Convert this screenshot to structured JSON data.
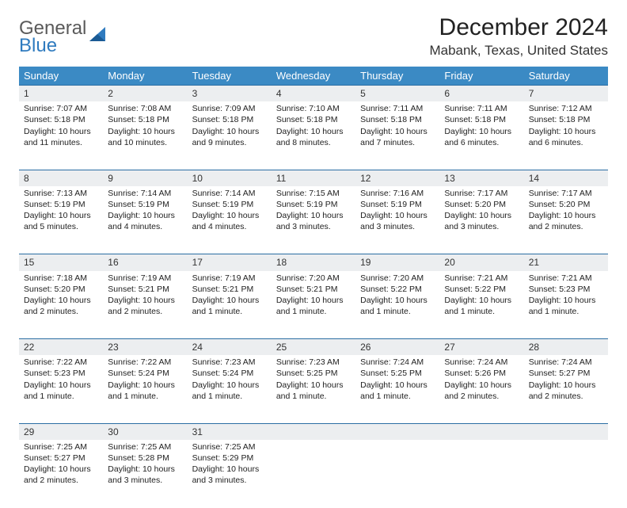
{
  "brand": {
    "general": "General",
    "blue": "Blue"
  },
  "title": "December 2024",
  "location": "Mabank, Texas, United States",
  "colors": {
    "header_bg": "#3b8ac4",
    "header_text": "#ffffff",
    "daynum_bg": "#eceef0",
    "daynum_border": "#2b6ea3",
    "logo_gray": "#5a5a5a",
    "logo_blue": "#2f7bbf"
  },
  "day_labels": [
    "Sunday",
    "Monday",
    "Tuesday",
    "Wednesday",
    "Thursday",
    "Friday",
    "Saturday"
  ],
  "weeks": [
    [
      {
        "n": "1",
        "sr": "7:07 AM",
        "ss": "5:18 PM",
        "dl": "10 hours and 11 minutes."
      },
      {
        "n": "2",
        "sr": "7:08 AM",
        "ss": "5:18 PM",
        "dl": "10 hours and 10 minutes."
      },
      {
        "n": "3",
        "sr": "7:09 AM",
        "ss": "5:18 PM",
        "dl": "10 hours and 9 minutes."
      },
      {
        "n": "4",
        "sr": "7:10 AM",
        "ss": "5:18 PM",
        "dl": "10 hours and 8 minutes."
      },
      {
        "n": "5",
        "sr": "7:11 AM",
        "ss": "5:18 PM",
        "dl": "10 hours and 7 minutes."
      },
      {
        "n": "6",
        "sr": "7:11 AM",
        "ss": "5:18 PM",
        "dl": "10 hours and 6 minutes."
      },
      {
        "n": "7",
        "sr": "7:12 AM",
        "ss": "5:18 PM",
        "dl": "10 hours and 6 minutes."
      }
    ],
    [
      {
        "n": "8",
        "sr": "7:13 AM",
        "ss": "5:19 PM",
        "dl": "10 hours and 5 minutes."
      },
      {
        "n": "9",
        "sr": "7:14 AM",
        "ss": "5:19 PM",
        "dl": "10 hours and 4 minutes."
      },
      {
        "n": "10",
        "sr": "7:14 AM",
        "ss": "5:19 PM",
        "dl": "10 hours and 4 minutes."
      },
      {
        "n": "11",
        "sr": "7:15 AM",
        "ss": "5:19 PM",
        "dl": "10 hours and 3 minutes."
      },
      {
        "n": "12",
        "sr": "7:16 AM",
        "ss": "5:19 PM",
        "dl": "10 hours and 3 minutes."
      },
      {
        "n": "13",
        "sr": "7:17 AM",
        "ss": "5:20 PM",
        "dl": "10 hours and 3 minutes."
      },
      {
        "n": "14",
        "sr": "7:17 AM",
        "ss": "5:20 PM",
        "dl": "10 hours and 2 minutes."
      }
    ],
    [
      {
        "n": "15",
        "sr": "7:18 AM",
        "ss": "5:20 PM",
        "dl": "10 hours and 2 minutes."
      },
      {
        "n": "16",
        "sr": "7:19 AM",
        "ss": "5:21 PM",
        "dl": "10 hours and 2 minutes."
      },
      {
        "n": "17",
        "sr": "7:19 AM",
        "ss": "5:21 PM",
        "dl": "10 hours and 1 minute."
      },
      {
        "n": "18",
        "sr": "7:20 AM",
        "ss": "5:21 PM",
        "dl": "10 hours and 1 minute."
      },
      {
        "n": "19",
        "sr": "7:20 AM",
        "ss": "5:22 PM",
        "dl": "10 hours and 1 minute."
      },
      {
        "n": "20",
        "sr": "7:21 AM",
        "ss": "5:22 PM",
        "dl": "10 hours and 1 minute."
      },
      {
        "n": "21",
        "sr": "7:21 AM",
        "ss": "5:23 PM",
        "dl": "10 hours and 1 minute."
      }
    ],
    [
      {
        "n": "22",
        "sr": "7:22 AM",
        "ss": "5:23 PM",
        "dl": "10 hours and 1 minute."
      },
      {
        "n": "23",
        "sr": "7:22 AM",
        "ss": "5:24 PM",
        "dl": "10 hours and 1 minute."
      },
      {
        "n": "24",
        "sr": "7:23 AM",
        "ss": "5:24 PM",
        "dl": "10 hours and 1 minute."
      },
      {
        "n": "25",
        "sr": "7:23 AM",
        "ss": "5:25 PM",
        "dl": "10 hours and 1 minute."
      },
      {
        "n": "26",
        "sr": "7:24 AM",
        "ss": "5:25 PM",
        "dl": "10 hours and 1 minute."
      },
      {
        "n": "27",
        "sr": "7:24 AM",
        "ss": "5:26 PM",
        "dl": "10 hours and 2 minutes."
      },
      {
        "n": "28",
        "sr": "7:24 AM",
        "ss": "5:27 PM",
        "dl": "10 hours and 2 minutes."
      }
    ],
    [
      {
        "n": "29",
        "sr": "7:25 AM",
        "ss": "5:27 PM",
        "dl": "10 hours and 2 minutes."
      },
      {
        "n": "30",
        "sr": "7:25 AM",
        "ss": "5:28 PM",
        "dl": "10 hours and 3 minutes."
      },
      {
        "n": "31",
        "sr": "7:25 AM",
        "ss": "5:29 PM",
        "dl": "10 hours and 3 minutes."
      },
      null,
      null,
      null,
      null
    ]
  ],
  "labels": {
    "sunrise": "Sunrise: ",
    "sunset": "Sunset: ",
    "daylight": "Daylight: "
  }
}
